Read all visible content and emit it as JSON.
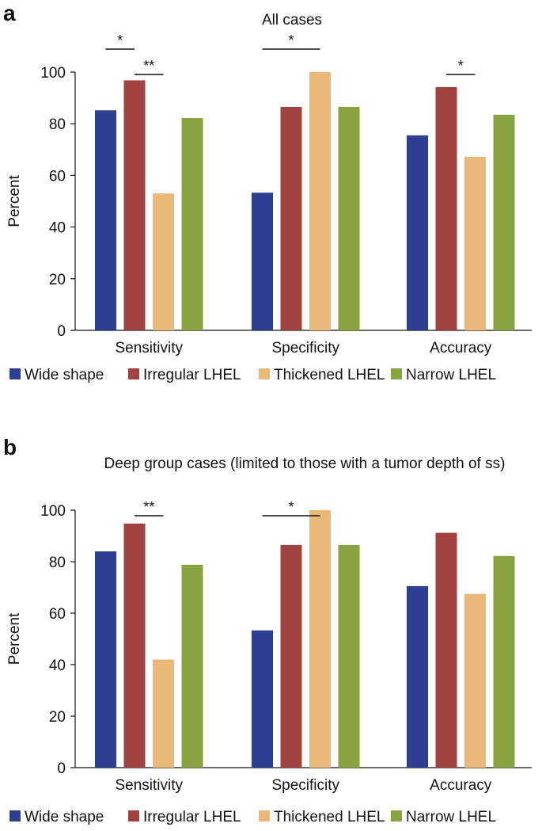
{
  "chart_data": [
    {
      "type": "bar",
      "panel_letter": "a",
      "title": "All cases",
      "ylabel": "Percent",
      "xlabel": "",
      "ylim": [
        0,
        100
      ],
      "yticks": [
        0,
        20,
        40,
        60,
        80,
        100
      ],
      "grid": false,
      "legend_position": "bottom",
      "categories": [
        "Sensitivity",
        "Specificity",
        "Accuracy"
      ],
      "series": [
        {
          "name": "Wide shape",
          "color": "#2E3F92",
          "values": [
            85.2,
            53.3,
            75.5
          ]
        },
        {
          "name": "Irregular LHEL",
          "color": "#A04240",
          "values": [
            96.8,
            86.5,
            94.2
          ]
        },
        {
          "name": "Thickened LHEL",
          "color": "#EAB878",
          "values": [
            53.0,
            100.0,
            67.2
          ]
        },
        {
          "name": "Narrow LHEL",
          "color": "#88A340",
          "values": [
            82.2,
            86.5,
            83.5
          ]
        }
      ],
      "significance": [
        {
          "group": 0,
          "from": 0,
          "to": 1,
          "label": "*",
          "level": 2
        },
        {
          "group": 0,
          "from": 1,
          "to": 2,
          "label": "**",
          "level": 1
        },
        {
          "group": 1,
          "from": 0,
          "to": 2,
          "label": "*",
          "level": 2
        },
        {
          "group": 2,
          "from": 1,
          "to": 2,
          "label": "*",
          "level": 1
        }
      ]
    },
    {
      "type": "bar",
      "panel_letter": "b",
      "title": "Deep group cases (limited to those with a tumor depth of ss)",
      "ylabel": "Percent",
      "xlabel": "",
      "ylim": [
        0,
        100
      ],
      "yticks": [
        0,
        20,
        40,
        60,
        80,
        100
      ],
      "grid": false,
      "legend_position": "bottom",
      "categories": [
        "Sensitivity",
        "Specificity",
        "Accuracy"
      ],
      "series": [
        {
          "name": "Wide shape",
          "color": "#2E3F92",
          "values": [
            84.0,
            53.3,
            70.5
          ]
        },
        {
          "name": "Irregular LHEL",
          "color": "#A04240",
          "values": [
            94.8,
            86.5,
            91.2
          ]
        },
        {
          "name": "Thickened LHEL",
          "color": "#EAB878",
          "values": [
            42.0,
            100.0,
            67.5
          ]
        },
        {
          "name": "Narrow LHEL",
          "color": "#88A340",
          "values": [
            78.8,
            86.5,
            82.2
          ]
        }
      ],
      "significance": [
        {
          "group": 0,
          "from": 1,
          "to": 2,
          "label": "**",
          "level": 1
        },
        {
          "group": 1,
          "from": 0,
          "to": 2,
          "label": "*",
          "level": 1
        }
      ]
    }
  ]
}
